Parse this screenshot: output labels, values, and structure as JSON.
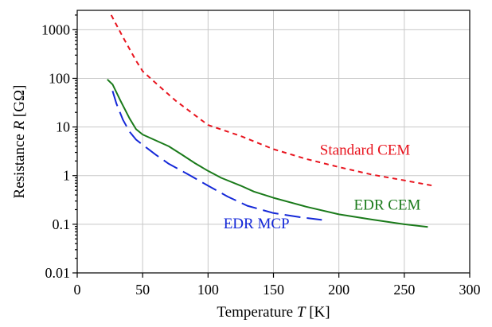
{
  "chart_data": {
    "type": "line",
    "xlabel_prefix": "Temperature",
    "xlabel_var": "T",
    "xlabel_unit": "[K]",
    "ylabel_prefix": "Resistance",
    "ylabel_var": "R",
    "ylabel_unit": "[GΩ]",
    "xlim": [
      0,
      300
    ],
    "ylim": [
      0.01,
      2500
    ],
    "y_scale": "log",
    "grid": true,
    "x_ticks": [
      0,
      50,
      100,
      150,
      200,
      250,
      300
    ],
    "x_tick_labels": [
      "0",
      "50",
      "100",
      "150",
      "200",
      "250",
      "300"
    ],
    "y_ticks": [
      0.01,
      0.1,
      1,
      10,
      100,
      1000
    ],
    "y_tick_labels": [
      "0.01",
      "0.1",
      "1",
      "10",
      "100",
      "1000"
    ],
    "series": [
      {
        "name": "Standard CEM",
        "color": "#e8141e",
        "dash": "6,5",
        "x": [
          26,
          35,
          45,
          50,
          60,
          75,
          100,
          125,
          150,
          175,
          200,
          225,
          250,
          272
        ],
        "y": [
          2000,
          700,
          230,
          140,
          80,
          35,
          11,
          6.5,
          3.5,
          2.2,
          1.5,
          1.05,
          0.8,
          0.62
        ]
      },
      {
        "name": "EDR CEM",
        "color": "#1a7a1a",
        "dash": "",
        "x": [
          23,
          27,
          33,
          40,
          45,
          50,
          60,
          70,
          80,
          90,
          100,
          110,
          125,
          135,
          150,
          175,
          200,
          225,
          250,
          268
        ],
        "y": [
          95,
          75,
          35,
          15,
          9,
          7,
          5.3,
          4,
          2.7,
          1.8,
          1.25,
          0.9,
          0.62,
          0.47,
          0.35,
          0.23,
          0.16,
          0.125,
          0.1,
          0.088
        ]
      },
      {
        "name": "EDR MCP",
        "color": "#1428d8",
        "dash": "20,8",
        "x": [
          27,
          30,
          35,
          40,
          45,
          50,
          60,
          70,
          85,
          100,
          115,
          130,
          150,
          170,
          187
        ],
        "y": [
          55,
          30,
          14,
          8,
          5.5,
          4.3,
          2.7,
          1.75,
          1.05,
          0.62,
          0.37,
          0.24,
          0.17,
          0.14,
          0.123
        ]
      }
    ],
    "labels": [
      {
        "text": "Standard CEM",
        "x": 220,
        "y": 2.7
      },
      {
        "text": "EDR CEM",
        "x": 237,
        "y": 0.2
      },
      {
        "text": "EDR MCP",
        "x": 137,
        "y": 0.082
      }
    ]
  }
}
